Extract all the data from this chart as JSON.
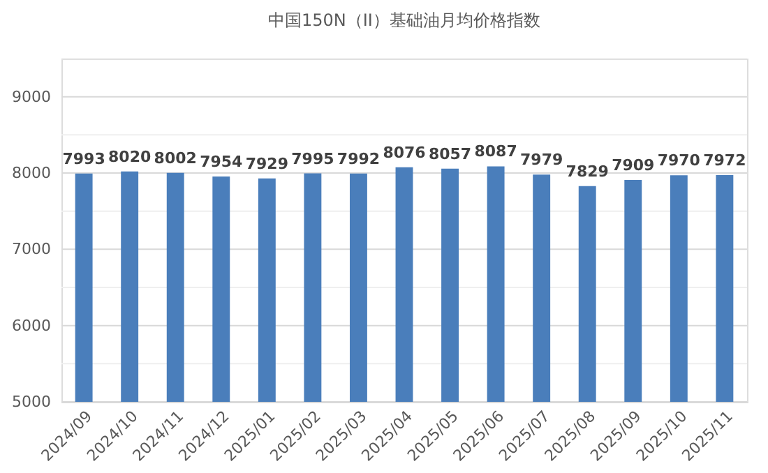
{
  "chart_data": {
    "type": "bar",
    "title": "中国150N（II）基础油月均价格指数",
    "categories": [
      "2024/09",
      "2024/10",
      "2024/11",
      "2024/12",
      "2025/01",
      "2025/02",
      "2025/03",
      "2025/04",
      "2025/05",
      "2025/06",
      "2025/07",
      "2025/08",
      "2025/09",
      "2025/10",
      "2025/11"
    ],
    "values": [
      7993,
      8020,
      8002,
      7954,
      7929,
      7995,
      7992,
      8076,
      8057,
      8087,
      7979,
      7829,
      7909,
      7970,
      7972
    ],
    "color": "#4a7ebb",
    "ylim": [
      5000,
      9500
    ],
    "yticks": [
      5000,
      {
        "value": 5500,
        "label": null
      },
      6000,
      {
        "value": 6500,
        "label": null
      },
      7000,
      {
        "value": 7500,
        "label": null
      },
      8000,
      {
        "value": 8500,
        "label": null
      },
      9000,
      {
        "value": 9500,
        "label": null
      }
    ],
    "grid": "y",
    "data_labels": true
  }
}
